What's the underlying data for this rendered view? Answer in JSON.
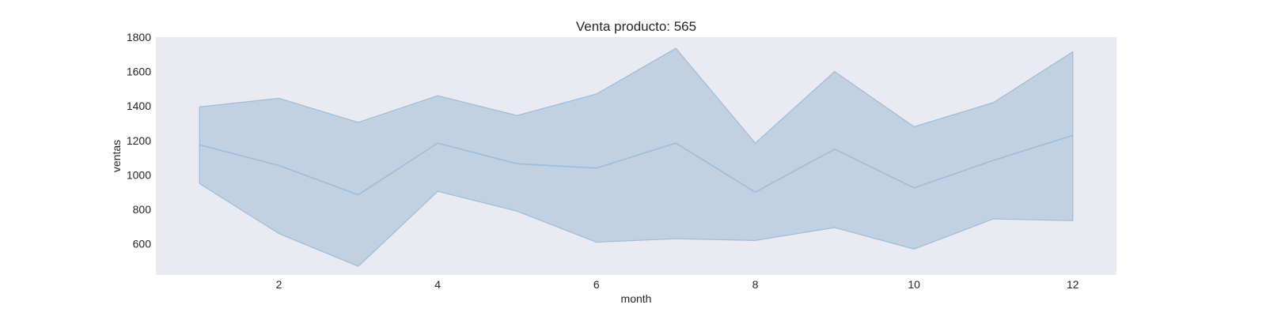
{
  "chart_data": {
    "type": "line",
    "title": "Venta producto: 565",
    "xlabel": "month",
    "ylabel": "ventas",
    "x": [
      1,
      2,
      3,
      4,
      5,
      6,
      7,
      8,
      9,
      10,
      11,
      12
    ],
    "series": [
      {
        "values": [
          1175,
          1055,
          885,
          1185,
          1065,
          1040,
          1185,
          900,
          1150,
          925,
          1085,
          1230
        ],
        "ci_upper": [
          1395,
          1445,
          1305,
          1460,
          1345,
          1470,
          1735,
          1185,
          1600,
          1280,
          1420,
          1715
        ],
        "ci_lower": [
          950,
          660,
          470,
          905,
          790,
          610,
          630,
          620,
          695,
          570,
          745,
          735
        ]
      }
    ],
    "x_ticks": [
      "2",
      "4",
      "6",
      "8",
      "10",
      "12"
    ],
    "y_ticks": [
      "600",
      "800",
      "1000",
      "1200",
      "1400",
      "1600",
      "1800"
    ],
    "xlim": [
      0.45,
      12.55
    ],
    "ylim": [
      420,
      1800
    ],
    "grid": false,
    "colors": {
      "background": "#eaeaf2",
      "line": "#9ebcd9",
      "band": "#c2d1e2"
    }
  }
}
